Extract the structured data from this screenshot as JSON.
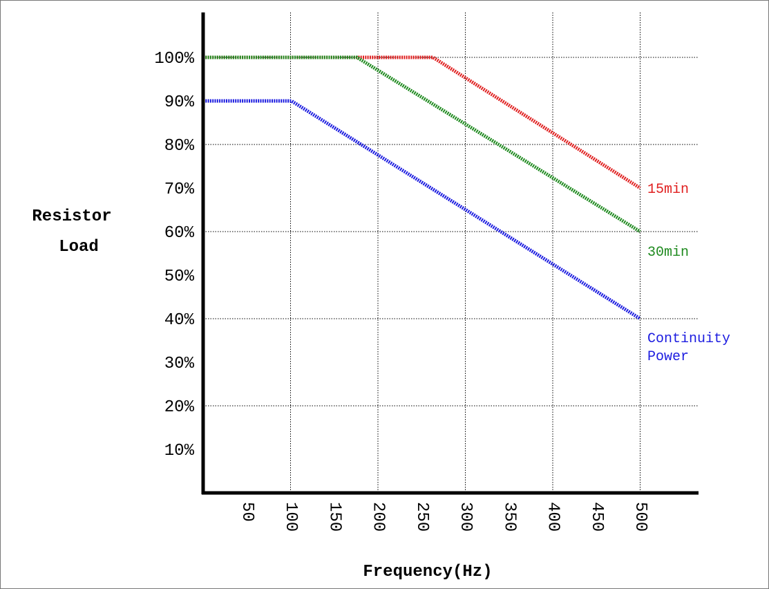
{
  "chart_data": {
    "type": "line",
    "title": "",
    "xlabel": "Frequency(Hz)",
    "ylabel_lines": [
      "Resistor",
      "Load"
    ],
    "x_ticks": [
      "50",
      "100",
      "150",
      "200",
      "250",
      "300",
      "350",
      "400",
      "450",
      "500"
    ],
    "y_ticks": [
      "10%",
      "20%",
      "30%",
      "40%",
      "50%",
      "60%",
      "70%",
      "80%",
      "90%",
      "100%"
    ],
    "xlim": [
      0,
      535
    ],
    "ylim": [
      0,
      110
    ],
    "grid": true,
    "series": [
      {
        "label_lines": [
          "15min"
        ],
        "color": "#e02020",
        "points": [
          [
            0,
            100
          ],
          [
            263,
            100
          ],
          [
            500,
            70
          ]
        ]
      },
      {
        "label_lines": [
          "30min"
        ],
        "color": "#1f8a1f",
        "points": [
          [
            0,
            100
          ],
          [
            176,
            100
          ],
          [
            500,
            60
          ]
        ]
      },
      {
        "label_lines": [
          "Continuity",
          "Power"
        ],
        "color": "#1c1ce0",
        "points": [
          [
            0,
            90
          ],
          [
            101,
            90
          ],
          [
            500,
            40
          ]
        ]
      }
    ]
  }
}
